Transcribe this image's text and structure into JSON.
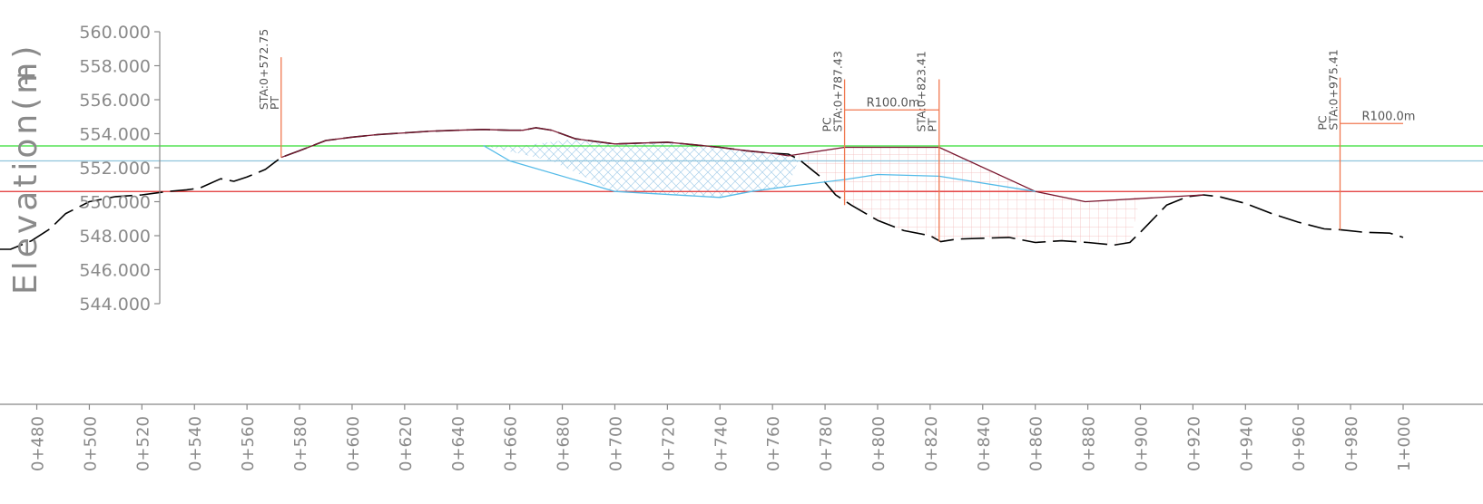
{
  "chart_data": {
    "type": "line",
    "ylabel": "Elevation(m)",
    "ylabel_marker": "+",
    "y_ticks": [
      "560.000",
      "558.000",
      "556.000",
      "554.000",
      "552.000",
      "550.000",
      "548.000",
      "546.000",
      "544.000"
    ],
    "ylim": [
      544,
      560
    ],
    "xlim": [
      466,
      1000
    ],
    "x_ticks": [
      {
        "x": 480,
        "label": "0+480"
      },
      {
        "x": 500,
        "label": "0+500"
      },
      {
        "x": 520,
        "label": "0+520"
      },
      {
        "x": 540,
        "label": "0+540"
      },
      {
        "x": 560,
        "label": "0+560"
      },
      {
        "x": 580,
        "label": "0+580"
      },
      {
        "x": 600,
        "label": "0+600"
      },
      {
        "x": 620,
        "label": "0+620"
      },
      {
        "x": 640,
        "label": "0+640"
      },
      {
        "x": 660,
        "label": "0+660"
      },
      {
        "x": 680,
        "label": "0+680"
      },
      {
        "x": 700,
        "label": "0+700"
      },
      {
        "x": 720,
        "label": "0+720"
      },
      {
        "x": 740,
        "label": "0+740"
      },
      {
        "x": 760,
        "label": "0+760"
      },
      {
        "x": 780,
        "label": "0+780"
      },
      {
        "x": 800,
        "label": "0+800"
      },
      {
        "x": 820,
        "label": "0+820"
      },
      {
        "x": 840,
        "label": "0+840"
      },
      {
        "x": 860,
        "label": "0+860"
      },
      {
        "x": 880,
        "label": "0+880"
      },
      {
        "x": 900,
        "label": "0+900"
      },
      {
        "x": 920,
        "label": "0+920"
      },
      {
        "x": 940,
        "label": "0+940"
      },
      {
        "x": 960,
        "label": "0+960"
      },
      {
        "x": 980,
        "label": "0+980"
      },
      {
        "x": 1000,
        "label": "1+000"
      }
    ],
    "horizontal_lines": [
      {
        "elev": 553.28,
        "color": "#33dd33"
      },
      {
        "elev": 552.4,
        "color": "#8fc4dc"
      },
      {
        "elev": 550.6,
        "color": "#e03030"
      }
    ],
    "series": [
      {
        "style": "dashed",
        "color": "#000000",
        "x": [
          466,
          470,
          478,
          485,
          491,
          500,
          510,
          520,
          525,
          530,
          537,
          542,
          550,
          555,
          560,
          567,
          573,
          580,
          590,
          600,
          610,
          620,
          630,
          640,
          650,
          660,
          665,
          670,
          676,
          685,
          700,
          710,
          720,
          730,
          740,
          750,
          760,
          766,
          770,
          778,
          784,
          790,
          800,
          810,
          820,
          824,
          830,
          840,
          850,
          860,
          870,
          880,
          890,
          896,
          900,
          910,
          918,
          924,
          930,
          940,
          950,
          960,
          970,
          976,
          985,
          995,
          1000
        ],
        "y": [
          547.2,
          547.2,
          547.7,
          548.4,
          549.3,
          550.0,
          550.3,
          550.4,
          550.5,
          550.6,
          550.7,
          550.8,
          551.35,
          551.2,
          551.45,
          551.9,
          552.6,
          553.0,
          553.6,
          553.8,
          553.95,
          554.05,
          554.15,
          554.2,
          554.25,
          554.2,
          554.2,
          554.35,
          554.2,
          553.7,
          553.4,
          553.45,
          553.5,
          553.35,
          553.2,
          553.0,
          552.85,
          552.8,
          552.5,
          551.5,
          550.4,
          549.8,
          548.9,
          548.3,
          548.0,
          547.65,
          547.8,
          547.85,
          547.9,
          547.6,
          547.7,
          547.6,
          547.45,
          547.6,
          548.2,
          549.8,
          550.3,
          550.4,
          550.3,
          549.9,
          549.3,
          548.8,
          548.4,
          548.35,
          548.2,
          548.15,
          547.9
        ]
      },
      {
        "style": "solid",
        "color": "#7a1830",
        "x": [
          573,
          580,
          590,
          600,
          610,
          620,
          630,
          640,
          650,
          660,
          665,
          670,
          676,
          685,
          700,
          710,
          720,
          730,
          740,
          750,
          760,
          766,
          787.43,
          823.41,
          860,
          879,
          924
        ],
        "y": [
          552.6,
          553.0,
          553.6,
          553.8,
          553.95,
          554.05,
          554.15,
          554.2,
          554.25,
          554.2,
          554.2,
          554.35,
          554.2,
          553.7,
          553.4,
          553.45,
          553.5,
          553.35,
          553.2,
          553.0,
          552.85,
          552.7,
          553.2,
          553.2,
          550.6,
          550.0,
          550.4
        ]
      },
      {
        "style": "solid",
        "color": "#55bbe8",
        "x": [
          650,
          660,
          700,
          740,
          752,
          766,
          787.43,
          800,
          823.41,
          860
        ],
        "y": [
          553.3,
          552.4,
          550.6,
          550.25,
          550.6,
          550.9,
          551.3,
          551.6,
          551.5,
          550.6
        ]
      }
    ],
    "hatched_regions": [
      {
        "fill": "blue-crosshatch",
        "x": [
          650,
          676,
          700,
          720,
          740,
          752,
          766,
          770,
          760,
          740,
          720,
          700,
          685,
          665
        ],
        "y": [
          553.3,
          552.4,
          550.6,
          550.4,
          550.25,
          550.6,
          550.9,
          552.5,
          552.85,
          553.2,
          553.5,
          553.4,
          553.7,
          553.3
        ]
      },
      {
        "fill": "red-grid",
        "x": [
          766,
          787.43,
          823.41,
          860,
          879,
          900,
          896,
          890,
          880,
          870,
          860,
          850,
          840,
          830,
          824,
          820,
          810,
          800,
          790,
          784,
          778,
          770
        ],
        "y": [
          552.7,
          553.2,
          553.2,
          550.6,
          550.0,
          550.3,
          547.6,
          547.45,
          547.6,
          547.7,
          547.6,
          547.9,
          547.85,
          547.8,
          547.65,
          548.0,
          548.3,
          548.9,
          549.8,
          550.4,
          551.5,
          552.5
        ]
      }
    ],
    "annotations": {
      "stations": [
        {
          "x": 573,
          "top": 558.5,
          "bottom": 552.6,
          "labels": [
            "STA:0+572.75",
            "PT"
          ]
        },
        {
          "x": 787.43,
          "top": 557.2,
          "bottom": 549.8,
          "labels": [
            "PC",
            "STA:0+787.43"
          ]
        },
        {
          "x": 823.41,
          "top": 557.2,
          "bottom": 547.65,
          "labels": [
            "STA:0+823.41",
            "PT"
          ]
        },
        {
          "x": 976,
          "top": 557.3,
          "bottom": 548.35,
          "labels": [
            "PC",
            "STA:0+975.41"
          ]
        }
      ],
      "curves": [
        {
          "x1": 787.43,
          "x2": 823.41,
          "elev": 555.4,
          "label": "R100.0m"
        },
        {
          "x1": 976,
          "x2": 1000,
          "elev": 554.6,
          "label": "R100.0m"
        }
      ]
    }
  }
}
